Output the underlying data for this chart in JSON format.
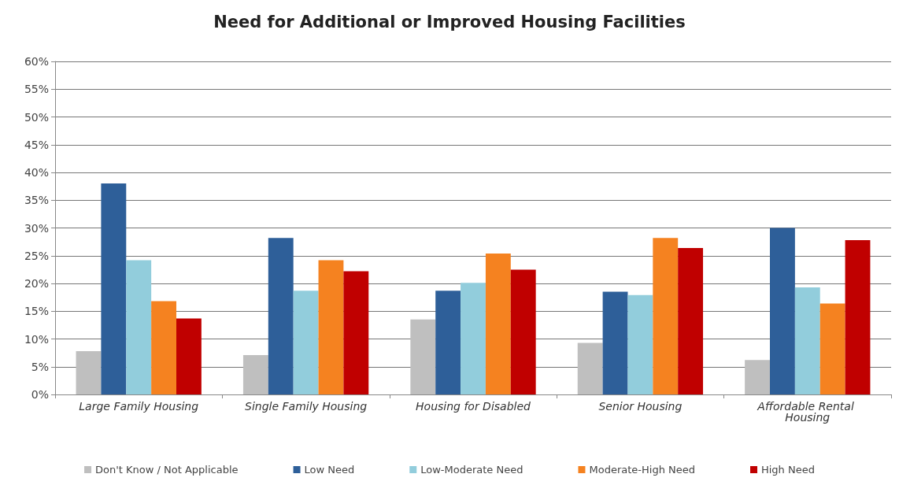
{
  "chart_data": {
    "type": "bar",
    "title": "Need for Additional or Improved Housing Facilities",
    "categories": [
      "Large Family Housing",
      "Single Family Housing",
      "Housing for Disabled",
      "Senior Housing",
      "Affordable Rental Housing"
    ],
    "series": [
      {
        "name": "Don't Know / Not Applicable",
        "color": "#bfbfbf",
        "values": [
          7.8,
          7.1,
          13.5,
          9.3,
          6.2
        ]
      },
      {
        "name": "Low Need",
        "color": "#2e5f99",
        "values": [
          38,
          28.2,
          18.7,
          18.5,
          30
        ]
      },
      {
        "name": "Low-Moderate Need",
        "color": "#92cddc",
        "values": [
          24.2,
          18.7,
          20.1,
          17.9,
          19.3
        ]
      },
      {
        "name": "Moderate-High Need",
        "color": "#f58220",
        "values": [
          16.8,
          24.2,
          25.4,
          28.2,
          16.4
        ]
      },
      {
        "name": "High Need",
        "color": "#c00000",
        "values": [
          13.7,
          22.2,
          22.5,
          26.4,
          27.8
        ]
      }
    ],
    "ylim": [
      0,
      60
    ],
    "yticks": [
      {
        "value": 0,
        "label": "0%"
      },
      {
        "value": 5,
        "label": "5%"
      },
      {
        "value": 10,
        "label": "10%"
      },
      {
        "value": 15,
        "label": "15%"
      },
      {
        "value": 20,
        "label": "20%"
      },
      {
        "value": 25,
        "label": "25%"
      },
      {
        "value": 30,
        "label": "30%"
      },
      {
        "value": 35,
        "label": "35%"
      },
      {
        "value": 40,
        "label": "40%"
      },
      {
        "value": 45,
        "label": "45%"
      },
      {
        "value": 50,
        "label": "50%"
      },
      {
        "value": 55,
        "label": "55%"
      },
      {
        "value": 60,
        "label": "60%"
      }
    ],
    "grid": "y",
    "legend": "bottom"
  }
}
